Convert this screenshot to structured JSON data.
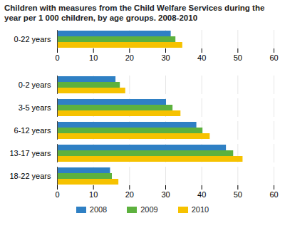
{
  "chart_data": {
    "type": "bar",
    "orientation": "horizontal",
    "title": "Children with measures from the Child Welfare Services during the year per 1 000 children, by age groups. 2008-2010",
    "categories": [
      "0-22 years",
      null,
      "0-2 years",
      "3-5 years",
      "6-12 years",
      "13-17 years",
      "18-22 years"
    ],
    "series": [
      {
        "name": "2008",
        "color": "#2f80c4",
        "values": [
          31.5,
          null,
          16.2,
          30.2,
          38.6,
          46.8,
          14.7
        ]
      },
      {
        "name": "2009",
        "color": "#5db13e",
        "values": [
          32.8,
          null,
          17.4,
          32.0,
          40.3,
          48.8,
          15.2
        ]
      },
      {
        "name": "2010",
        "color": "#f6c200",
        "values": [
          34.7,
          null,
          18.9,
          34.2,
          42.3,
          51.4,
          17.0
        ]
      }
    ],
    "xlim": [
      0,
      60
    ],
    "xticks": [
      0,
      10,
      20,
      30,
      40,
      50,
      60
    ],
    "grid": true,
    "legend": "bottom"
  }
}
